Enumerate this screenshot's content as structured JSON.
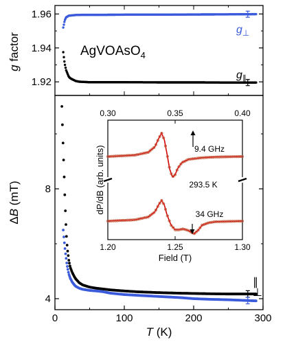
{
  "chart_data": [
    {
      "panel": "top",
      "type": "scatter",
      "ylabel_symbol": "g",
      "ylabel_rest": " factor",
      "compound": {
        "base": "AgVOAsO",
        "sub": "4"
      },
      "yticks": [
        "1.96",
        "1.94",
        "1.92"
      ],
      "ylim": [
        1.912,
        1.965
      ],
      "xlim": [
        0,
        300
      ],
      "series": [
        {
          "name": "g",
          "name_sub": "⊥",
          "color": "#3b5bdb",
          "x": [
            12,
            13,
            14,
            15,
            16,
            18,
            20,
            25,
            30,
            40,
            50,
            70,
            100,
            150,
            200,
            250,
            290
          ],
          "y": [
            1.952,
            1.954,
            1.956,
            1.957,
            1.958,
            1.9585,
            1.959,
            1.9592,
            1.9594,
            1.9595,
            1.9595,
            1.9595,
            1.9596,
            1.9596,
            1.9597,
            1.9598,
            1.9599
          ],
          "err_at": 278,
          "err": 0.0018
        },
        {
          "name": "g",
          "name_sub": "∥",
          "color": "#000000",
          "x": [
            12,
            13,
            14,
            15,
            16,
            18,
            20,
            22,
            25,
            30,
            35,
            40,
            50,
            70,
            100,
            150,
            200,
            250,
            290
          ],
          "y": [
            1.9375,
            1.934,
            1.931,
            1.929,
            1.927,
            1.925,
            1.923,
            1.9222,
            1.9215,
            1.9205,
            1.9201,
            1.92,
            1.9198,
            1.9198,
            1.9198,
            1.9197,
            1.9197,
            1.9196,
            1.9196
          ],
          "err_at": 278,
          "err": 0.0018
        }
      ]
    },
    {
      "panel": "bottom",
      "type": "scatter",
      "xlabel_symbol": "T",
      "xlabel_rest": " (K)",
      "ylabel_symbol": "B",
      "ylabel_prefix": "Δ",
      "ylabel_rest": " (mT)",
      "xticks": [
        "0",
        "100",
        "200",
        "300"
      ],
      "yticks": [
        "8",
        "4"
      ],
      "xlim": [
        0,
        300
      ],
      "ylim": [
        3.6,
        11.4
      ],
      "series": [
        {
          "name": "∥",
          "color": "#000000",
          "x": [
            10,
            11,
            12,
            13,
            14,
            15,
            16,
            17,
            18,
            20,
            22,
            25,
            28,
            30,
            35,
            40,
            50,
            60,
            70,
            80,
            100,
            120,
            150,
            180,
            200,
            220,
            250,
            270,
            290
          ],
          "y": [
            11.0,
            10.2,
            9.4,
            8.7,
            7.9,
            7.2,
            6.6,
            6.1,
            5.8,
            5.4,
            5.15,
            4.95,
            4.8,
            4.72,
            4.58,
            4.5,
            4.42,
            4.38,
            4.35,
            4.32,
            4.28,
            4.25,
            4.22,
            4.2,
            4.19,
            4.18,
            4.17,
            4.17,
            4.17
          ],
          "err_at": 278,
          "err": 0.12
        },
        {
          "name": "⊥",
          "color": "#3b5bdb",
          "x": [
            12,
            13,
            14,
            15,
            16,
            17,
            18,
            20,
            22,
            25,
            28,
            30,
            35,
            40,
            50,
            60,
            70,
            80,
            100,
            120,
            150,
            180,
            200,
            220,
            250,
            270,
            290
          ],
          "y": [
            6.5,
            6.2,
            5.95,
            5.7,
            5.5,
            5.3,
            5.15,
            4.9,
            4.75,
            4.6,
            4.5,
            4.45,
            4.38,
            4.34,
            4.3,
            4.28,
            4.25,
            4.2,
            4.15,
            4.12,
            4.08,
            4.04,
            4.0,
            3.98,
            3.96,
            3.94,
            3.92
          ],
          "err_at": 278,
          "err": 0.12
        }
      ]
    },
    {
      "panel": "inset",
      "type": "line",
      "ylabel": "dP/dB (arb. units)",
      "xlabel": "Field (T)",
      "top_xticks": [
        "0.30",
        "0.35",
        "0.40"
      ],
      "bottom_xticks": [
        "1.20",
        "1.25",
        "1.30"
      ],
      "top_xlim": [
        0.3,
        0.4
      ],
      "bottom_xlim": [
        1.2,
        1.3
      ],
      "temperature_label": "293.5 K",
      "spectra": [
        {
          "label": "9.4 GHz",
          "axis": "top",
          "baseline": 0,
          "fit_color": "#d40000",
          "data_color": "#c06040",
          "x": [
            0.3,
            0.32,
            0.33,
            0.335,
            0.338,
            0.34,
            0.342,
            0.344,
            0.346,
            0.348,
            0.35,
            0.352,
            0.355,
            0.36,
            0.37,
            0.38,
            0.4
          ],
          "y": [
            0.0,
            0.06,
            0.18,
            0.42,
            0.8,
            1.0,
            0.72,
            0.1,
            -0.55,
            -0.88,
            -0.78,
            -0.5,
            -0.26,
            -0.12,
            -0.05,
            -0.02,
            0.0
          ]
        },
        {
          "label": "34 GHz",
          "axis": "bottom",
          "baseline": 0,
          "fit_color": "#d40000",
          "data_color": "#c06040",
          "x": [
            1.2,
            1.22,
            1.23,
            1.235,
            1.238,
            1.24,
            1.242,
            1.244,
            1.247,
            1.25,
            1.253,
            1.256,
            1.26,
            1.264,
            1.267,
            1.27,
            1.275,
            1.28,
            1.3
          ],
          "y": [
            0.0,
            0.06,
            0.2,
            0.45,
            0.82,
            1.0,
            0.78,
            0.3,
            -0.2,
            -0.42,
            -0.42,
            -0.38,
            -0.46,
            -0.62,
            -0.45,
            -0.2,
            -0.08,
            -0.03,
            0.0
          ]
        }
      ]
    }
  ]
}
